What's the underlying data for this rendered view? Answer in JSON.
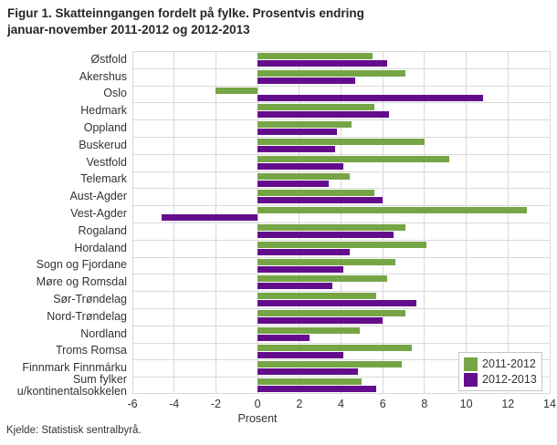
{
  "figure": {
    "title": "Figur 1. Skatteinngangen fordelt på fylke. Prosentvis endring\njanuar-november 2011-2012 og 2012-2013",
    "source": "Kjelde: Statistisk sentralbyrå."
  },
  "chart_data": {
    "type": "bar",
    "orientation": "horizontal",
    "title": "Figur 1. Skatteinngangen fordelt på fylke. Prosentvis endring januar-november 2011-2012 og 2012-2013",
    "xlabel": "Prosent",
    "ylabel": "",
    "xlim": [
      -6,
      14
    ],
    "xticks": [
      -6,
      -4,
      -2,
      0,
      2,
      4,
      6,
      8,
      10,
      12,
      14
    ],
    "grid": true,
    "legend_position": "inside-bottom-right",
    "categories": [
      "Østfold",
      "Akershus",
      "Oslo",
      "Hedmark",
      "Oppland",
      "Buskerud",
      "Vestfold",
      "Telemark",
      "Aust-Agder",
      "Vest-Agder",
      "Rogaland",
      "Hordaland",
      "Sogn og Fjordane",
      "Møre og Romsdal",
      "Sør-Trøndelag",
      "Nord-Trøndelag",
      "Nordland",
      "Troms Romsa",
      "Finnmark Finnmárku",
      "Sum fylker u/kontinentalsokkelen"
    ],
    "series": [
      {
        "name": "2011-2012",
        "color": "#76a546",
        "values": [
          5.5,
          7.1,
          -2.0,
          5.6,
          4.5,
          8.0,
          9.2,
          4.4,
          5.6,
          12.9,
          7.1,
          8.1,
          6.6,
          6.2,
          5.7,
          7.1,
          4.9,
          7.4,
          6.9,
          5.0
        ]
      },
      {
        "name": "2012-2013",
        "color": "#640d8c",
        "values": [
          6.2,
          4.7,
          10.8,
          6.3,
          3.8,
          3.7,
          4.1,
          3.4,
          6.0,
          -4.6,
          6.5,
          4.4,
          4.1,
          3.6,
          7.6,
          6.0,
          2.5,
          4.1,
          4.8,
          5.7
        ]
      }
    ],
    "colors": {
      "gridline": "#d9d9d9",
      "text": "#333333",
      "title": "#262626",
      "legend_border": "#c6c6c6"
    }
  }
}
